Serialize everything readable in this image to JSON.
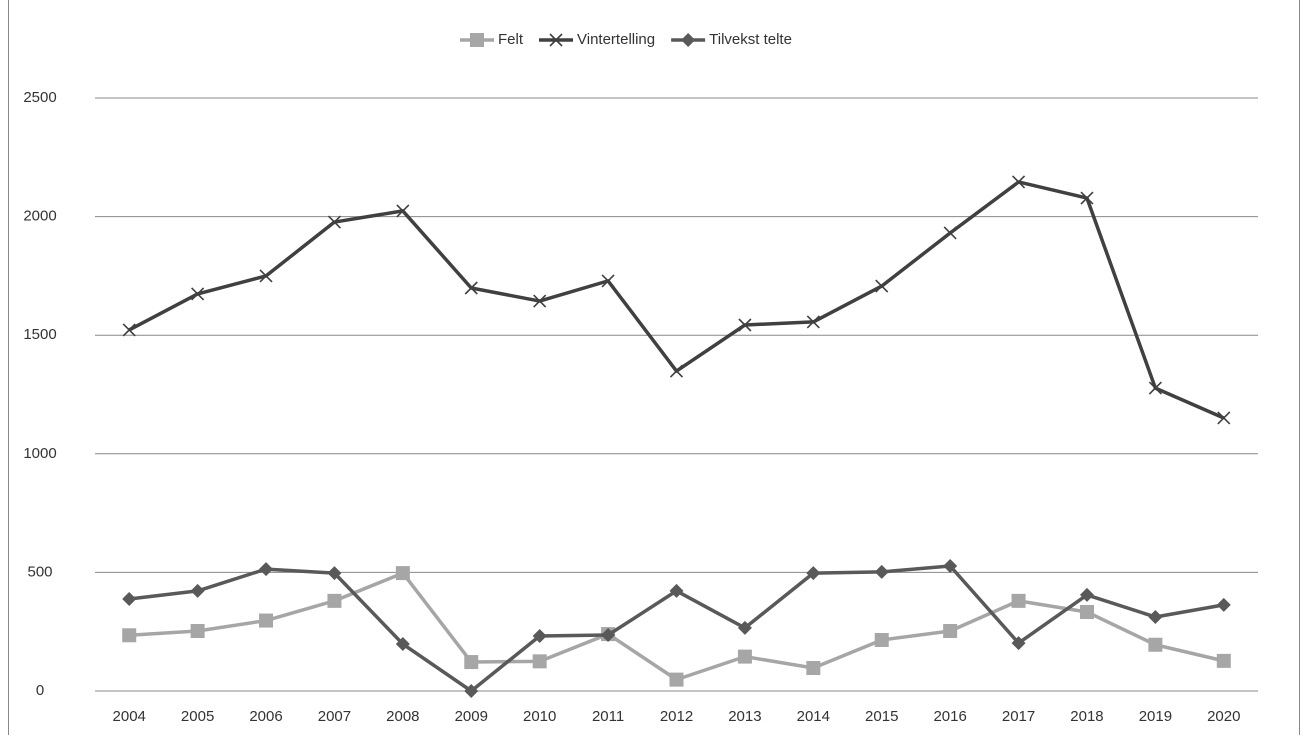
{
  "chart_data": {
    "type": "line",
    "categories": [
      "2004",
      "2005",
      "2006",
      "2007",
      "2008",
      "2009",
      "2010",
      "2011",
      "2012",
      "2013",
      "2014",
      "2015",
      "2016",
      "2017",
      "2018",
      "2019",
      "2020"
    ],
    "series": [
      {
        "name": "Felt",
        "color": "#a6a6a6",
        "marker": "square",
        "values": [
          235,
          253,
          297,
          380,
          497,
          122,
          125,
          240,
          48,
          145,
          97,
          215,
          253,
          380,
          333,
          195,
          127
        ]
      },
      {
        "name": "Vintertelling",
        "color": "#404040",
        "marker": "x",
        "values": [
          1522,
          1674,
          1750,
          1977,
          2024,
          1699,
          1644,
          1729,
          1349,
          1543,
          1556,
          1707,
          1931,
          2146,
          2078,
          1277,
          1151
        ]
      },
      {
        "name": "Tilvekst telte",
        "color": "#595959",
        "marker": "diamond",
        "values": [
          388,
          422,
          514,
          497,
          198,
          0,
          232,
          236,
          422,
          266,
          497,
          502,
          527,
          202,
          405,
          312,
          363
        ]
      }
    ],
    "ylim": [
      0,
      2500
    ],
    "yticks": [
      0,
      500,
      1000,
      1500,
      2000,
      2500
    ],
    "grid": true,
    "legend": "top"
  }
}
